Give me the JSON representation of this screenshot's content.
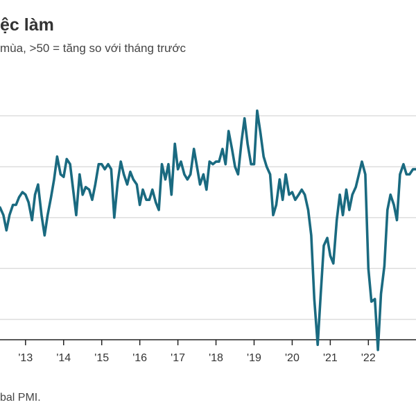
{
  "header": {
    "title": "ệc làm",
    "subtitle": "mùa, >50 = tăng so với tháng trước"
  },
  "footer": {
    "source": "bal PMI."
  },
  "colors": {
    "line": "#1a6a80",
    "grid": "#dddddd",
    "axis": "#222222"
  },
  "chart_data": {
    "type": "line",
    "title": "ệc làm",
    "subtitle": "mùa, >50 = tăng so với tháng trước",
    "xlabel": "",
    "ylabel": "",
    "x_tick_labels": [
      "'13",
      "'14",
      "'15",
      "'16",
      "'17",
      "'18",
      "'19",
      "'20",
      "'21",
      "'22"
    ],
    "x_tick_years": [
      2013,
      2014,
      2015,
      2016,
      2017,
      2018,
      2019,
      2020,
      2021,
      2022
    ],
    "xlim": [
      2012.33,
      2023.25
    ],
    "ylim": [
      47.6,
      52.75
    ],
    "grid_y": [
      48,
      49,
      50,
      51,
      52
    ],
    "grid": true,
    "legend": "none",
    "series": [
      {
        "x": [
          2012.33,
          2012.42,
          2012.5,
          2012.58,
          2012.67,
          2012.75,
          2012.83,
          2012.92,
          2013.0,
          2013.08,
          2013.17,
          2013.25,
          2013.33,
          2013.42,
          2013.5,
          2013.58,
          2013.67,
          2013.75,
          2013.83,
          2013.92,
          2014.0,
          2014.08,
          2014.17,
          2014.25,
          2014.33,
          2014.42,
          2014.5,
          2014.58,
          2014.67,
          2014.75,
          2014.83,
          2014.92,
          2015.0,
          2015.08,
          2015.17,
          2015.25,
          2015.33,
          2015.42,
          2015.5,
          2015.58,
          2015.67,
          2015.75,
          2015.83,
          2015.92,
          2016.0,
          2016.08,
          2016.17,
          2016.25,
          2016.33,
          2016.42,
          2016.5,
          2016.58,
          2016.67,
          2016.75,
          2016.83,
          2016.92,
          2017.0,
          2017.08,
          2017.17,
          2017.25,
          2017.33,
          2017.42,
          2017.5,
          2017.58,
          2017.67,
          2017.75,
          2017.83,
          2017.92,
          2018.0,
          2018.08,
          2018.17,
          2018.25,
          2018.33,
          2018.42,
          2018.5,
          2018.58,
          2018.67,
          2018.75,
          2018.83,
          2018.92,
          2019.0,
          2019.08,
          2019.17,
          2019.25,
          2019.33,
          2019.42,
          2019.5,
          2019.58,
          2019.67,
          2019.75,
          2019.83,
          2019.92,
          2020.0,
          2020.08,
          2020.17,
          2020.25,
          2020.33,
          2020.42,
          2020.5,
          2020.58,
          2020.67,
          2020.75,
          2020.83,
          2020.92,
          2021.0,
          2021.08,
          2021.17,
          2021.25,
          2021.33,
          2021.42,
          2021.5,
          2021.58,
          2021.67,
          2021.75,
          2021.83,
          2021.92,
          2022.0,
          2022.08,
          2022.17,
          2022.25,
          2022.33,
          2022.42,
          2022.5,
          2022.58,
          2022.67,
          2022.75,
          2022.83,
          2022.92,
          2023.0,
          2023.08,
          2023.17,
          2023.25
        ],
        "y": [
          50.2,
          50.05,
          49.75,
          50.05,
          50.25,
          50.25,
          50.4,
          50.5,
          50.45,
          50.3,
          49.95,
          50.45,
          50.65,
          50.05,
          49.65,
          50.05,
          50.4,
          50.75,
          51.2,
          50.85,
          50.8,
          51.15,
          51.05,
          50.55,
          50.05,
          50.85,
          50.45,
          50.6,
          50.55,
          50.35,
          50.65,
          51.05,
          51.05,
          50.95,
          51.05,
          50.95,
          50.0,
          50.7,
          51.1,
          50.85,
          50.65,
          50.9,
          50.75,
          50.65,
          50.25,
          50.55,
          50.35,
          50.35,
          50.55,
          50.3,
          50.15,
          51.05,
          50.75,
          51.05,
          50.45,
          51.45,
          50.95,
          51.1,
          50.85,
          50.75,
          50.85,
          51.35,
          51.0,
          50.65,
          50.85,
          50.55,
          51.1,
          51.05,
          51.1,
          51.1,
          51.35,
          51.05,
          51.7,
          51.35,
          51.0,
          50.85,
          51.5,
          51.95,
          51.45,
          51.05,
          51.05,
          52.1,
          51.65,
          51.2,
          51.0,
          50.85,
          50.05,
          50.25,
          50.75,
          50.35,
          50.85,
          50.45,
          50.5,
          50.35,
          50.45,
          50.55,
          50.45,
          50.15,
          49.65,
          48.4,
          47.5,
          48.5,
          49.45,
          49.6,
          49.25,
          49.1,
          49.95,
          50.45,
          50.05,
          50.55,
          50.15,
          50.45,
          50.6,
          50.85,
          51.1,
          50.85,
          49.0,
          48.35,
          48.4,
          47.4,
          48.5,
          49.05,
          50.15,
          50.45,
          50.25,
          49.95,
          50.85,
          51.05,
          50.85,
          50.85,
          50.95,
          50.95
        ]
      }
    ]
  }
}
